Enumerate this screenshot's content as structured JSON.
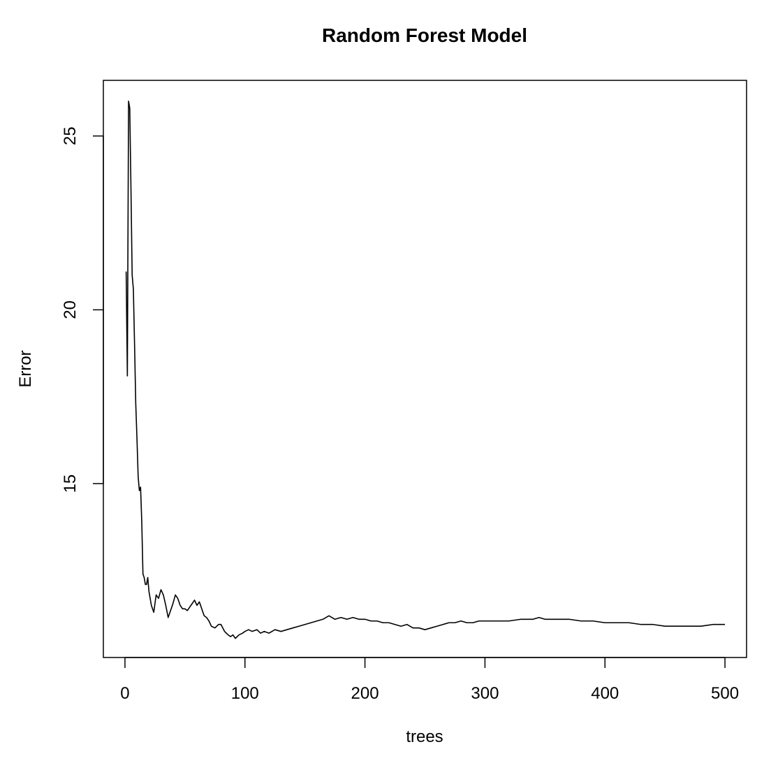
{
  "chart_data": {
    "type": "line",
    "title": "Random Forest Model",
    "xlabel": "trees",
    "ylabel": "Error",
    "xlim": [
      -18,
      518
    ],
    "ylim": [
      10,
      26.6
    ],
    "x_ticks": [
      0,
      100,
      200,
      300,
      400,
      500
    ],
    "y_ticks": [
      15,
      20,
      25
    ],
    "grid": false,
    "legend": "none",
    "line_color": "#000000",
    "series": [
      {
        "x": [
          1,
          2,
          3,
          4,
          5,
          6,
          7,
          8,
          9,
          10,
          11,
          12,
          13,
          14,
          15,
          16,
          17,
          18,
          19,
          20,
          22,
          24,
          26,
          28,
          30,
          32,
          34,
          36,
          38,
          40,
          42,
          44,
          46,
          48,
          50,
          52,
          54,
          56,
          58,
          60,
          62,
          64,
          66,
          68,
          70,
          72,
          75,
          78,
          80,
          83,
          86,
          88,
          90,
          92,
          95,
          98,
          100,
          103,
          106,
          110,
          113,
          116,
          120,
          125,
          130,
          135,
          140,
          145,
          150,
          155,
          160,
          165,
          170,
          175,
          180,
          185,
          190,
          195,
          200,
          205,
          210,
          215,
          220,
          225,
          230,
          235,
          240,
          245,
          250,
          255,
          260,
          265,
          270,
          275,
          280,
          285,
          290,
          295,
          300,
          310,
          320,
          330,
          340,
          345,
          350,
          360,
          370,
          380,
          390,
          400,
          410,
          420,
          430,
          440,
          450,
          460,
          470,
          480,
          490,
          495,
          500
        ],
        "values": [
          21.1,
          18.1,
          26.0,
          25.8,
          23.5,
          21.0,
          20.6,
          19.0,
          17.3,
          16.3,
          15.2,
          14.8,
          14.9,
          13.9,
          12.4,
          12.3,
          12.1,
          12.1,
          12.3,
          11.9,
          11.5,
          11.3,
          11.8,
          11.7,
          11.95,
          11.8,
          11.5,
          11.15,
          11.35,
          11.55,
          11.8,
          11.7,
          11.5,
          11.4,
          11.4,
          11.35,
          11.45,
          11.55,
          11.65,
          11.5,
          11.6,
          11.4,
          11.2,
          11.15,
          11.05,
          10.9,
          10.85,
          10.95,
          10.95,
          10.75,
          10.65,
          10.6,
          10.65,
          10.55,
          10.65,
          10.7,
          10.75,
          10.8,
          10.75,
          10.8,
          10.7,
          10.75,
          10.7,
          10.8,
          10.75,
          10.8,
          10.85,
          10.9,
          10.95,
          11.0,
          11.05,
          11.1,
          11.2,
          11.1,
          11.15,
          11.1,
          11.15,
          11.1,
          11.1,
          11.05,
          11.05,
          11.0,
          11.0,
          10.95,
          10.9,
          10.95,
          10.85,
          10.85,
          10.8,
          10.85,
          10.9,
          10.95,
          11.0,
          11.0,
          11.05,
          11.0,
          11.0,
          11.05,
          11.05,
          11.05,
          11.05,
          11.1,
          11.1,
          11.15,
          11.1,
          11.1,
          11.1,
          11.05,
          11.05,
          11.0,
          11.0,
          11.0,
          10.95,
          10.95,
          10.9,
          10.9,
          10.9,
          10.9,
          10.95,
          10.95,
          10.95
        ]
      }
    ]
  }
}
